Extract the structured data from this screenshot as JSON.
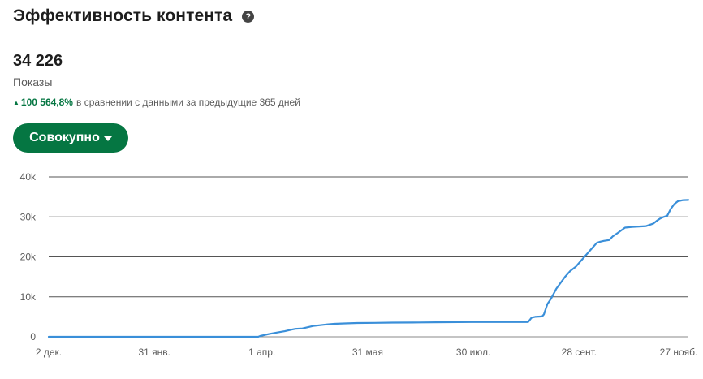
{
  "header": {
    "title": "Эффективность контента",
    "help_glyph": "?"
  },
  "summary": {
    "value": "34 226",
    "label": "Показы",
    "change_arrow": "▲",
    "change_pct": "100 564,8%",
    "change_text": "в сравнении с данными за предыдущие 365 дней"
  },
  "dropdown": {
    "label": "Совокупно"
  },
  "colors": {
    "accent": "#057642",
    "line": "#3a8fd9",
    "grid": "#555555"
  },
  "chart_data": {
    "type": "line",
    "title": "",
    "xlabel": "",
    "ylabel": "",
    "ylim": [
      0,
      40000
    ],
    "yticks": [
      0,
      10000,
      20000,
      30000,
      40000
    ],
    "ytick_labels": [
      "0",
      "10k",
      "20k",
      "30k",
      "40k"
    ],
    "xtick_labels": [
      "2 дек.",
      "31 янв.",
      "1 апр.",
      "31 мая",
      "30 июл.",
      "28 сент.",
      "27 нояб."
    ],
    "xticks_day": [
      0,
      60,
      121,
      181,
      241,
      301,
      361
    ],
    "xlim_day": [
      0,
      363
    ],
    "grid": true,
    "series": [
      {
        "x_day": [
          0,
          60,
          100,
          116,
          119,
          120,
          125,
          130,
          134,
          138,
          140,
          144,
          148,
          150,
          154,
          158,
          162,
          168,
          175,
          185,
          195,
          210,
          225,
          240,
          255,
          270,
          272,
          274,
          276,
          280,
          281,
          283,
          285,
          288,
          290,
          293,
          296,
          299,
          302,
          305,
          308,
          311,
          313,
          315,
          318,
          320,
          323,
          327,
          331,
          335,
          339,
          343,
          345,
          347,
          349,
          351,
          353,
          355,
          357,
          360,
          363
        ],
        "values": [
          0,
          0,
          0,
          0,
          20,
          200,
          700,
          1100,
          1400,
          1800,
          2000,
          2100,
          2500,
          2700,
          2900,
          3100,
          3250,
          3350,
          3450,
          3500,
          3550,
          3600,
          3650,
          3700,
          3700,
          3700,
          3700,
          4800,
          5000,
          5100,
          5600,
          8200,
          9500,
          12000,
          13200,
          15000,
          16500,
          17500,
          19000,
          20500,
          22000,
          23500,
          23800,
          24000,
          24200,
          25100,
          26000,
          27300,
          27500,
          27600,
          27700,
          28300,
          29000,
          29600,
          30000,
          30300,
          32000,
          33200,
          33900,
          34200,
          34226
        ]
      }
    ]
  }
}
